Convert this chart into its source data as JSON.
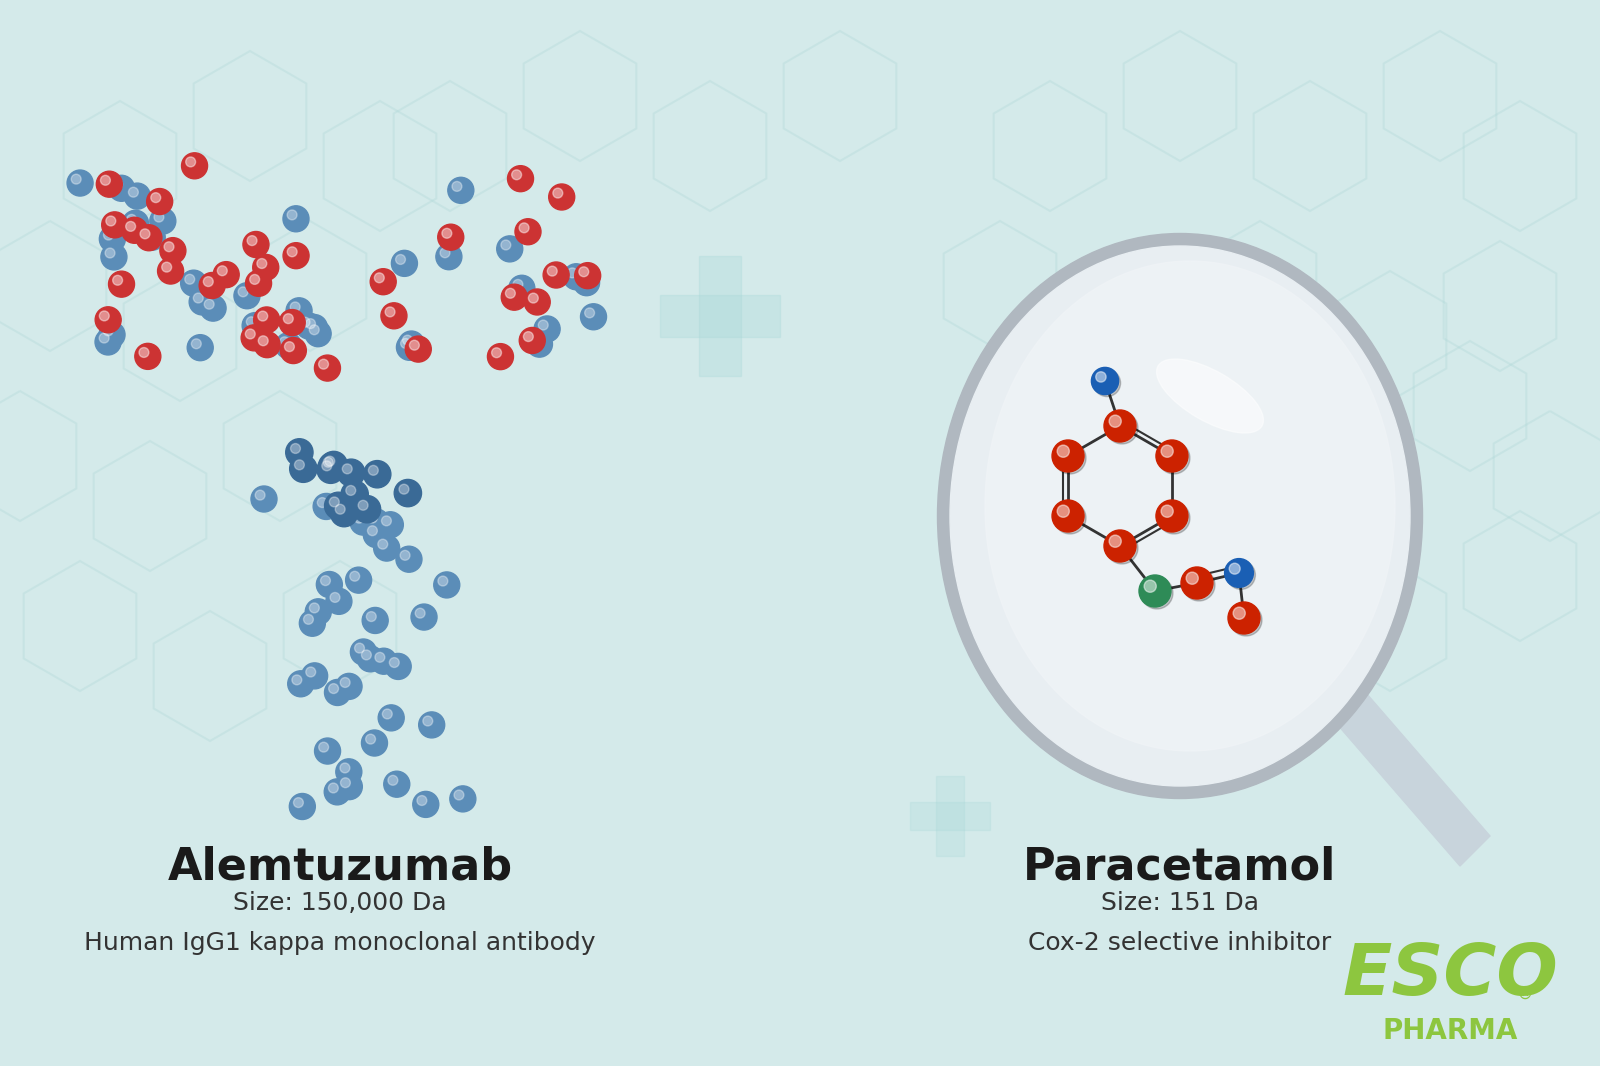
{
  "bg_color": "#d6ecec",
  "bg_color2": "#e8f5f5",
  "left_title": "Alemtuzumab",
  "left_size": "Size: 150,000 Da",
  "left_desc": "Human IgG1 kappa monoclonal antibody",
  "right_title": "Paracetamol",
  "right_size": "Size: 151 Da",
  "right_desc": "Cox-2 selective inhibitor",
  "logo_text": "ESCO",
  "logo_sub": "PHARMA",
  "logo_color": "#8dc63f",
  "antibody_blue": "#5b8db8",
  "antibody_blue_dark": "#3a6a96",
  "antibody_red": "#cc3333",
  "antibody_red_dark": "#aa1111",
  "mol_red": "#cc2200",
  "mol_blue": "#1a5fb4",
  "mol_green": "#2e8b57",
  "title_fontsize": 32,
  "desc_fontsize": 18
}
